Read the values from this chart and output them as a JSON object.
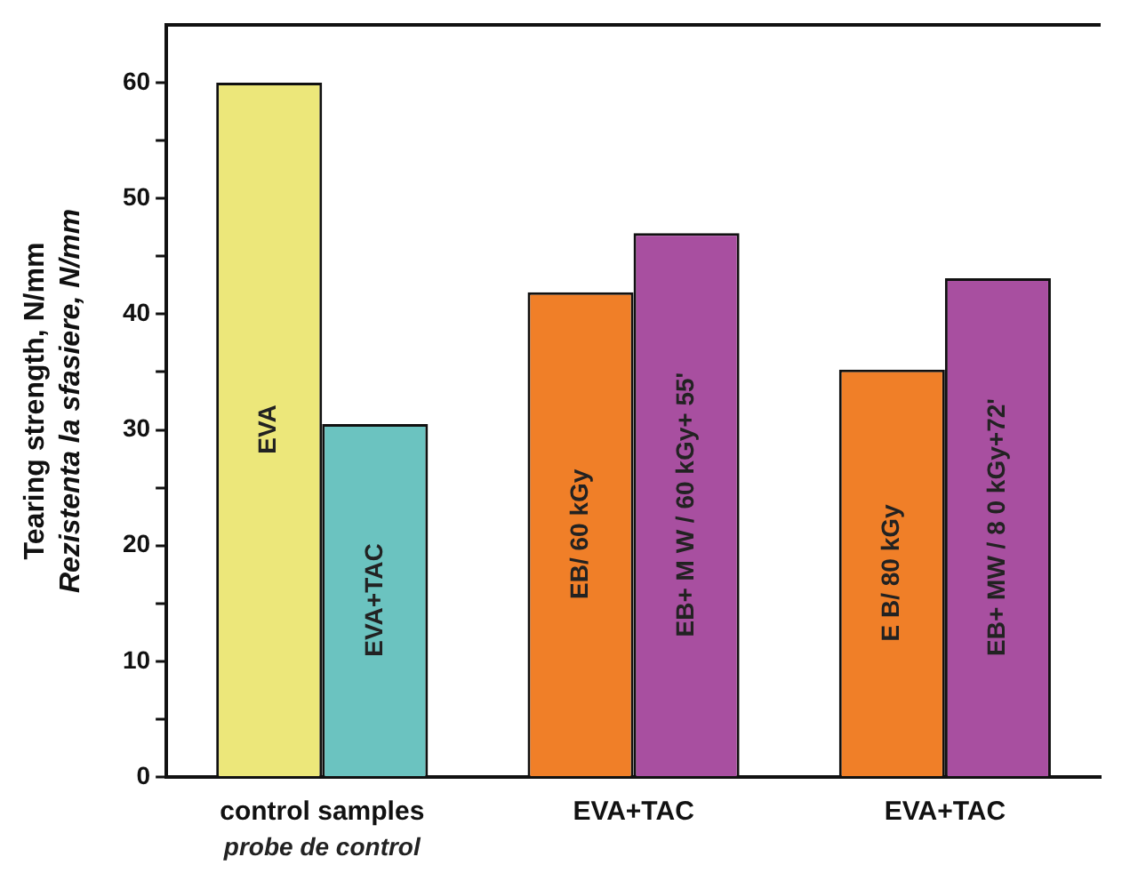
{
  "chart_data": {
    "type": "bar",
    "ylabel": "Tearing strength, N/mm",
    "y2label": "Rezistenta la sfasiere, N/mm",
    "categories": [
      "control samples",
      "EVA+TAC",
      "EVA+TAC"
    ],
    "series": [
      {
        "name": "EVA",
        "color": "#ece77a",
        "values": [
          60,
          null,
          null
        ]
      },
      {
        "name": "EVA+TAC",
        "color": "#6bc3c0",
        "values": [
          30.5,
          null,
          null
        ]
      },
      {
        "name": "EB/ 60 kGy",
        "color": "#f07f28",
        "values": [
          null,
          41.9,
          null
        ]
      },
      {
        "name": "EB+ M W / 60 kGy+ 55'",
        "color": "#a84fa0",
        "values": [
          null,
          47.0,
          null
        ]
      },
      {
        "name": "E B/ 80 kGy",
        "color": "#f07f28",
        "values": [
          null,
          null,
          35.2
        ]
      },
      {
        "name": "EB+ MW / 8 0 kGy+72'",
        "color": "#a84fa0",
        "values": [
          null,
          null,
          43.1
        ]
      }
    ],
    "annotations": [
      "probe de control"
    ],
    "ylim": [
      0,
      65
    ],
    "yticks": [
      0,
      {
        "value": 5,
        "label": null
      },
      10,
      {
        "value": 15,
        "label": null
      },
      20,
      {
        "value": 25,
        "label": null
      },
      30,
      {
        "value": 35,
        "label": null
      },
      40,
      {
        "value": 45,
        "label": null
      },
      50,
      {
        "value": 55,
        "label": null
      },
      60
    ],
    "grid": false,
    "legend": false
  }
}
